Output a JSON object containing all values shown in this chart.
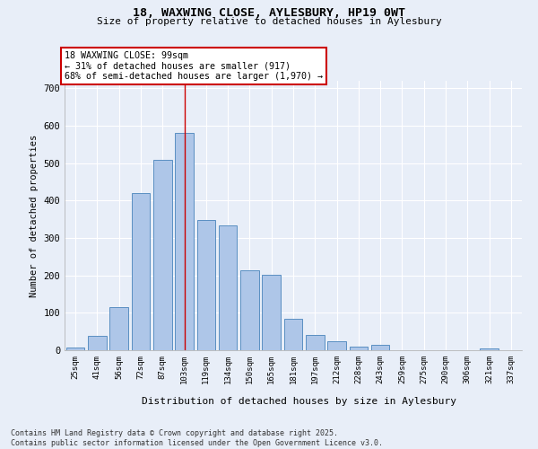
{
  "title_line1": "18, WAXWING CLOSE, AYLESBURY, HP19 0WT",
  "title_line2": "Size of property relative to detached houses in Aylesbury",
  "xlabel": "Distribution of detached houses by size in Aylesbury",
  "ylabel": "Number of detached properties",
  "categories": [
    "25sqm",
    "41sqm",
    "56sqm",
    "72sqm",
    "87sqm",
    "103sqm",
    "119sqm",
    "134sqm",
    "150sqm",
    "165sqm",
    "181sqm",
    "197sqm",
    "212sqm",
    "228sqm",
    "243sqm",
    "259sqm",
    "275sqm",
    "290sqm",
    "306sqm",
    "321sqm",
    "337sqm"
  ],
  "values": [
    8,
    38,
    115,
    420,
    510,
    580,
    348,
    333,
    213,
    201,
    85,
    40,
    25,
    10,
    14,
    0,
    0,
    0,
    0,
    5,
    0
  ],
  "bar_color": "#aec6e8",
  "bar_edge_color": "#5a8fc2",
  "property_bin_index": 5,
  "annotation_line1": "18 WAXWING CLOSE: 99sqm",
  "annotation_line2": "← 31% of detached houses are smaller (917)",
  "annotation_line3": "68% of semi-detached houses are larger (1,970) →",
  "vline_color": "#cc0000",
  "annotation_box_edge": "#cc0000",
  "ylim": [
    0,
    720
  ],
  "yticks": [
    0,
    100,
    200,
    300,
    400,
    500,
    600,
    700
  ],
  "footer_line1": "Contains HM Land Registry data © Crown copyright and database right 2025.",
  "footer_line2": "Contains public sector information licensed under the Open Government Licence v3.0.",
  "bg_color": "#e8eef8",
  "grid_color": "#ffffff"
}
